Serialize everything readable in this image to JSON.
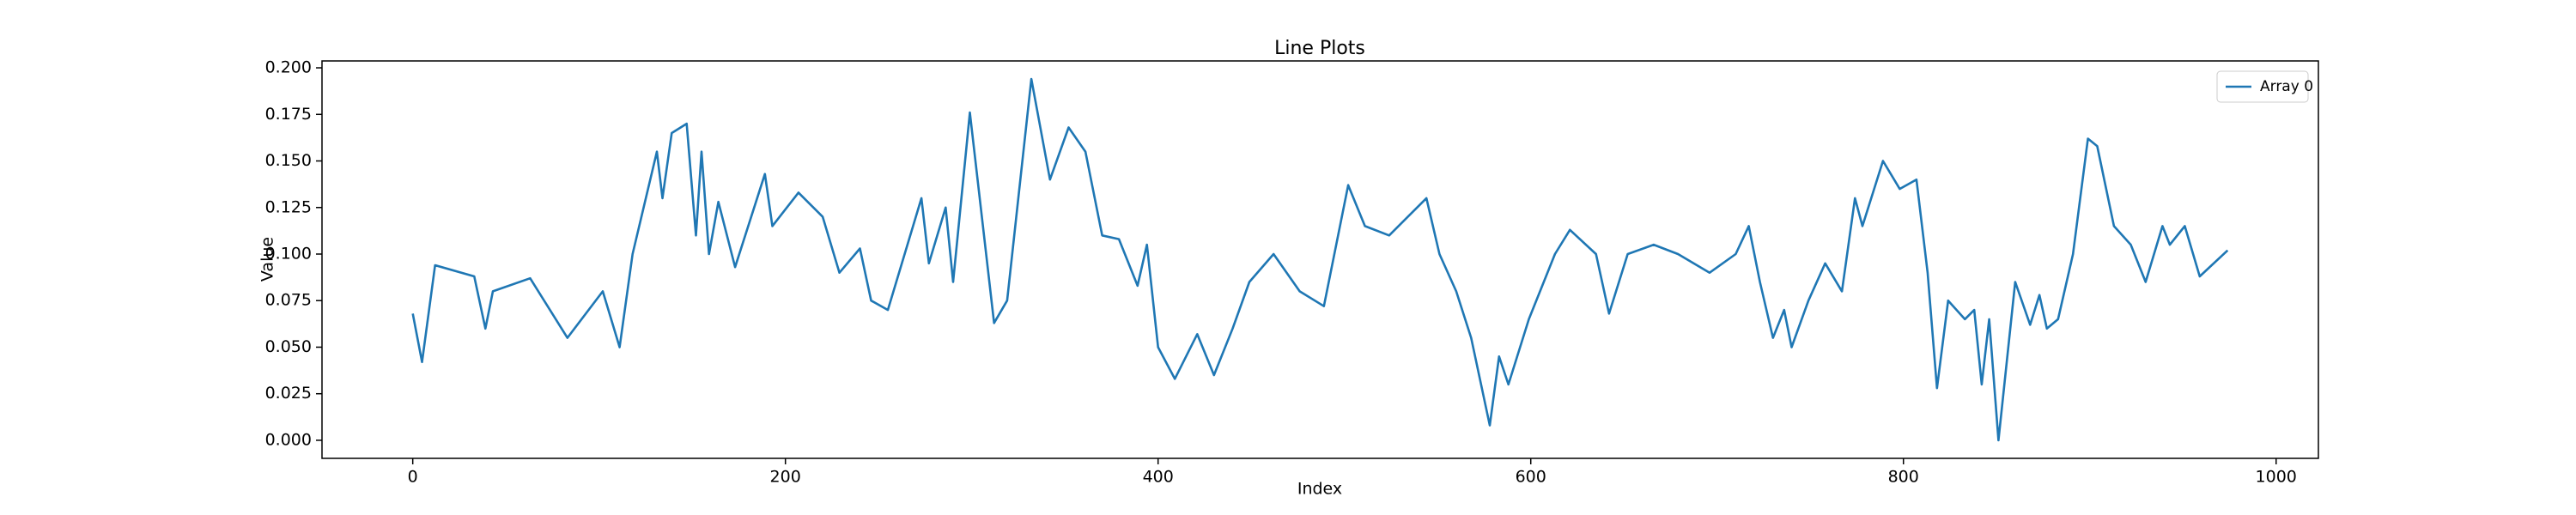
{
  "chart_data": {
    "type": "line",
    "title": "Line Plots",
    "x_label": "Index",
    "y_label": "Value",
    "x": [
      0,
      5,
      12,
      33,
      39,
      43,
      63,
      83,
      102,
      111,
      118,
      131,
      134,
      139,
      147,
      152,
      155,
      159,
      164,
      173,
      189,
      193,
      207,
      220,
      229,
      240,
      246,
      255,
      273,
      277,
      286,
      290,
      299,
      312,
      319,
      332,
      342,
      352,
      361,
      370,
      379,
      389,
      394,
      400,
      409,
      421,
      430,
      440,
      449,
      462,
      476,
      489,
      502,
      511,
      524,
      544,
      551,
      560,
      568,
      578,
      583,
      588,
      599,
      613,
      621,
      635,
      642,
      652,
      666,
      679,
      696,
      710,
      717,
      723,
      730,
      736,
      740,
      749,
      758,
      767,
      774,
      778,
      789,
      798,
      807,
      813,
      818,
      824,
      833,
      838,
      842,
      846,
      851,
      860,
      868,
      873,
      877,
      883,
      891,
      899,
      904,
      913,
      922,
      930,
      939,
      943,
      951,
      959,
      974
    ],
    "series": [
      {
        "name": "Array 0",
        "color": "#1f77b4",
        "values": [
          0.068,
          0.042,
          0.094,
          0.088,
          0.06,
          0.08,
          0.087,
          0.055,
          0.08,
          0.05,
          0.1,
          0.155,
          0.13,
          0.165,
          0.17,
          0.11,
          0.155,
          0.1,
          0.128,
          0.093,
          0.143,
          0.115,
          0.133,
          0.12,
          0.09,
          0.103,
          0.075,
          0.07,
          0.13,
          0.095,
          0.125,
          0.085,
          0.176,
          0.063,
          0.075,
          0.194,
          0.14,
          0.168,
          0.155,
          0.11,
          0.108,
          0.083,
          0.105,
          0.05,
          0.033,
          0.057,
          0.035,
          0.06,
          0.085,
          0.1,
          0.08,
          0.072,
          0.137,
          0.115,
          0.11,
          0.13,
          0.1,
          0.08,
          0.055,
          0.008,
          0.045,
          0.03,
          0.065,
          0.1,
          0.113,
          0.1,
          0.068,
          0.1,
          0.105,
          0.1,
          0.09,
          0.1,
          0.115,
          0.085,
          0.055,
          0.07,
          0.05,
          0.075,
          0.095,
          0.08,
          0.13,
          0.115,
          0.15,
          0.135,
          0.14,
          0.09,
          0.028,
          0.075,
          0.065,
          0.07,
          0.03,
          0.065,
          0.0,
          0.085,
          0.062,
          0.078,
          0.06,
          0.065,
          0.1,
          0.162,
          0.158,
          0.115,
          0.105,
          0.085,
          0.115,
          0.105,
          0.115,
          0.088,
          0.102
        ]
      }
    ],
    "xlim": [
      -48.7,
      1022.7
    ],
    "ylim": [
      -0.0097,
      0.2037
    ],
    "xticks": [
      0,
      200,
      400,
      600,
      800,
      1000
    ],
    "yticks": [
      {
        "value": 0,
        "label": "0.000"
      },
      {
        "value": 0.025,
        "label": "0.025"
      },
      {
        "value": 0.05,
        "label": "0.050"
      },
      {
        "value": 0.075,
        "label": "0.075"
      },
      {
        "value": 0.1,
        "label": "0.100"
      },
      {
        "value": 0.125,
        "label": "0.125"
      },
      {
        "value": 0.15,
        "label": "0.150"
      },
      {
        "value": 0.175,
        "label": "0.175"
      },
      {
        "value": 0.2,
        "label": "0.200"
      }
    ],
    "legend": "upper right",
    "grid": false
  }
}
